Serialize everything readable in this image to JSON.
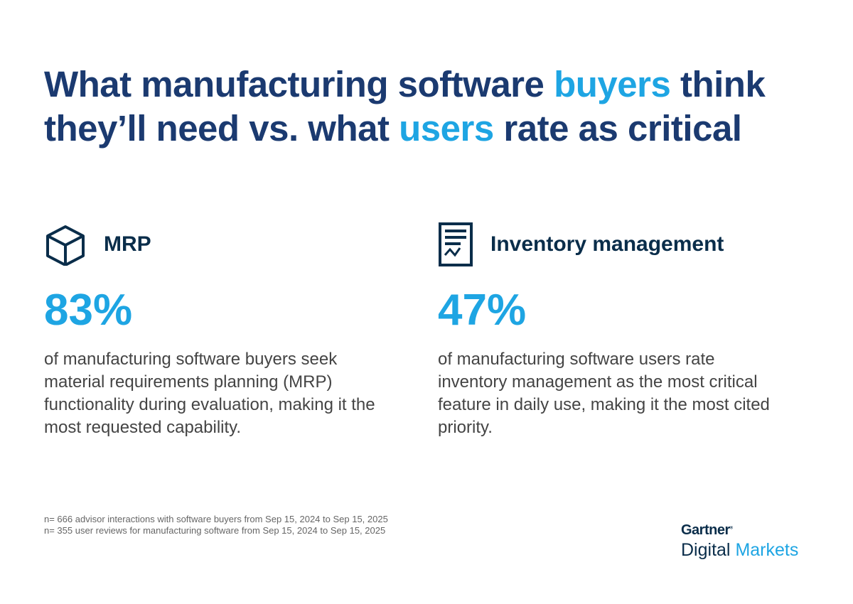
{
  "title": {
    "part1": "What manufacturing software ",
    "accent1": "buyers",
    "part2": " think they’ll need vs. what ",
    "accent2": "users",
    "part3": " rate as critical"
  },
  "colors": {
    "navy": "#1b3a70",
    "accent": "#1ea5e3",
    "heading": "#0a2d4a"
  },
  "cards": [
    {
      "icon": "cube-icon",
      "heading": "MRP",
      "stat": "83%",
      "description": "of manufacturing software buyers seek material requirements planning (MRP) functionality during evaluation, making it the most requested capability."
    },
    {
      "icon": "report-chart-icon",
      "heading": "Inventory management",
      "stat": "47%",
      "description": "of manufacturing software users rate inventory management as the most critical feature in daily use, making it the most cited priority."
    }
  ],
  "notes": [
    "n= 666 advisor interactions with software buyers from Sep 15, 2024 to Sep 15, 2025",
    "n= 355 user reviews for manufacturing software from Sep 15, 2024 to Sep 15, 2025"
  ],
  "logo": {
    "brand": "Gartner",
    "product_dark": "Digital",
    "product_accent": "Markets"
  }
}
